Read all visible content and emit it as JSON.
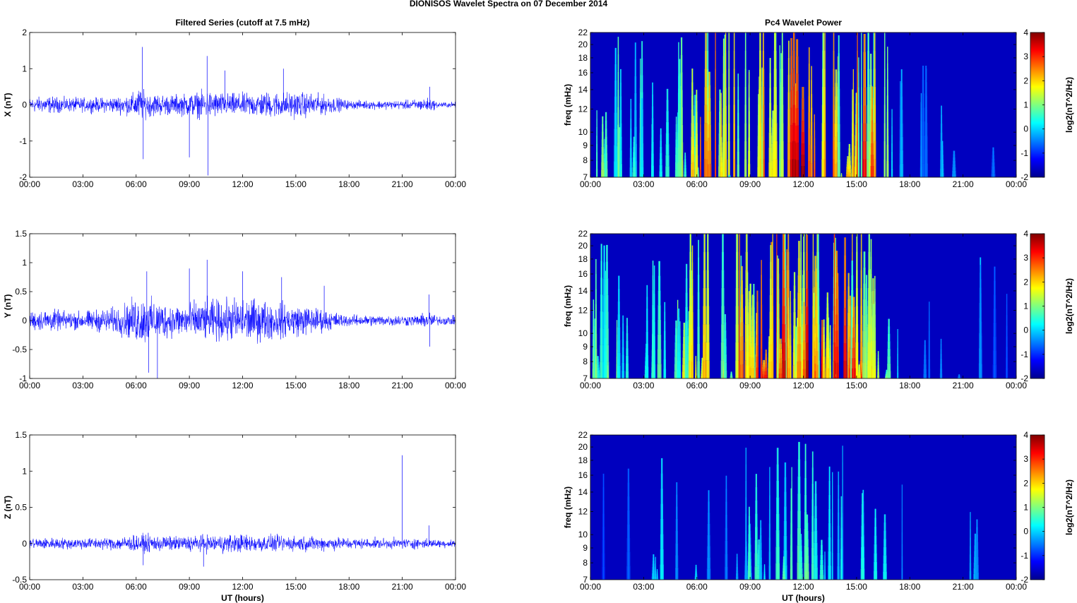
{
  "figure_title": "DIONISOS Wavelet Spectra on 07 December  2014",
  "chart_data": [
    {
      "type": "line",
      "title": "Filtered Series (cutoff at 7.5 mHz)",
      "xlabel": "",
      "ylabel": "X (nT)",
      "x_range_hours": [
        0,
        24
      ],
      "xticks": [
        "00:00",
        "03:00",
        "06:00",
        "09:00",
        "12:00",
        "15:00",
        "18:00",
        "21:00",
        "00:00"
      ],
      "ylim": [
        -2,
        2
      ],
      "yticks": [
        "-2",
        "-1",
        "0",
        "1",
        "2"
      ],
      "series_color": "#0000ff",
      "envelope": {
        "hours": [
          0,
          1,
          2,
          3,
          4,
          5,
          5.8,
          6.2,
          6.5,
          7,
          8,
          9,
          10,
          11,
          12,
          13,
          14,
          15,
          16,
          17,
          18,
          19,
          20,
          21,
          22,
          22.5,
          23,
          24
        ],
        "amplitude_nT": [
          0.25,
          0.3,
          0.25,
          0.25,
          0.25,
          0.3,
          0.4,
          0.6,
          0.45,
          0.4,
          0.35,
          0.4,
          0.5,
          0.4,
          0.4,
          0.45,
          0.45,
          0.45,
          0.4,
          0.3,
          0.15,
          0.15,
          0.15,
          0.15,
          0.2,
          0.25,
          0.1,
          0.1
        ]
      },
      "spikes": [
        {
          "hour": 6.35,
          "value": 1.6
        },
        {
          "hour": 6.4,
          "value": -1.5
        },
        {
          "hour": 9.0,
          "value": -1.45
        },
        {
          "hour": 10.0,
          "value": 1.35
        },
        {
          "hour": 10.05,
          "value": -1.95
        },
        {
          "hour": 11.0,
          "value": 0.95
        },
        {
          "hour": 14.3,
          "value": 1.0
        },
        {
          "hour": 22.55,
          "value": 0.5
        }
      ]
    },
    {
      "type": "line",
      "title": "",
      "xlabel": "",
      "ylabel": "Y (nT)",
      "x_range_hours": [
        0,
        24
      ],
      "xticks": [
        "00:00",
        "03:00",
        "06:00",
        "09:00",
        "12:00",
        "15:00",
        "18:00",
        "21:00",
        "00:00"
      ],
      "ylim": [
        -1,
        1.5
      ],
      "yticks": [
        "-1",
        "-0.5",
        "0",
        "0.5",
        "1",
        "1.5"
      ],
      "series_color": "#0000ff",
      "envelope": {
        "hours": [
          0,
          1,
          2,
          3,
          4,
          5,
          5.8,
          6.2,
          6.5,
          7,
          8,
          9,
          10,
          11,
          12,
          13,
          14,
          15,
          16,
          17,
          18,
          19,
          20,
          21,
          22,
          22.5,
          23,
          24
        ],
        "amplitude_nT": [
          0.2,
          0.25,
          0.2,
          0.2,
          0.25,
          0.3,
          0.45,
          0.55,
          0.5,
          0.45,
          0.35,
          0.4,
          0.45,
          0.45,
          0.5,
          0.45,
          0.4,
          0.35,
          0.3,
          0.2,
          0.12,
          0.12,
          0.12,
          0.12,
          0.12,
          0.2,
          0.1,
          0.1
        ]
      },
      "spikes": [
        {
          "hour": 6.6,
          "value": 0.85
        },
        {
          "hour": 6.7,
          "value": -0.9
        },
        {
          "hour": 7.2,
          "value": -1.0
        },
        {
          "hour": 10.0,
          "value": 1.05
        },
        {
          "hour": 9.0,
          "value": 0.9
        },
        {
          "hour": 12.0,
          "value": 0.85
        },
        {
          "hour": 14.2,
          "value": 0.75
        },
        {
          "hour": 16.6,
          "value": 0.6
        },
        {
          "hour": 22.5,
          "value": 0.45
        },
        {
          "hour": 22.55,
          "value": -0.45
        }
      ]
    },
    {
      "type": "line",
      "title": "",
      "xlabel": "UT (hours)",
      "ylabel": "Z (nT)",
      "x_range_hours": [
        0,
        24
      ],
      "xticks": [
        "00:00",
        "03:00",
        "06:00",
        "09:00",
        "12:00",
        "15:00",
        "18:00",
        "21:00",
        "00:00"
      ],
      "ylim": [
        -0.5,
        1.5
      ],
      "yticks": [
        "-0.5",
        "0",
        "0.5",
        "1",
        "1.5"
      ],
      "series_color": "#0000ff",
      "envelope": {
        "hours": [
          0,
          1,
          2,
          3,
          4,
          5,
          6,
          7,
          8,
          9,
          10,
          11,
          12,
          13,
          14,
          15,
          16,
          17,
          18,
          19,
          20,
          21,
          22,
          23,
          24
        ],
        "amplitude_nT": [
          0.1,
          0.1,
          0.1,
          0.1,
          0.1,
          0.12,
          0.15,
          0.15,
          0.12,
          0.14,
          0.15,
          0.16,
          0.16,
          0.15,
          0.14,
          0.13,
          0.13,
          0.12,
          0.1,
          0.09,
          0.09,
          0.09,
          0.09,
          0.07,
          0.07
        ]
      },
      "spikes": [
        {
          "hour": 21.0,
          "value": 1.22
        },
        {
          "hour": 6.4,
          "value": -0.3
        },
        {
          "hour": 9.8,
          "value": -0.32
        },
        {
          "hour": 22.5,
          "value": 0.25
        }
      ]
    },
    {
      "type": "heatmap",
      "title": "Pc4 Wavelet Power",
      "xlabel": "",
      "ylabel": "freq (mHz)",
      "x_range_hours": [
        0,
        24
      ],
      "xticks": [
        "00:00",
        "03:00",
        "06:00",
        "09:00",
        "12:00",
        "15:00",
        "18:00",
        "21:00",
        "00:00"
      ],
      "ylim_mHz": [
        7,
        22
      ],
      "y_scale": "log",
      "yticks": [
        "7",
        "8",
        "9",
        "10",
        "12",
        "14",
        "16",
        "18",
        "20",
        "22"
      ],
      "colorbar": {
        "label": "log2(nT^2/Hz)",
        "range": [
          -2,
          4
        ],
        "ticks": [
          "-2",
          "-1",
          "0",
          "1",
          "2",
          "3",
          "4"
        ],
        "colormap": "jet"
      },
      "background_value": -2,
      "activity": {
        "hours": [
          0,
          1,
          2,
          3,
          4,
          5,
          6,
          7,
          8,
          9,
          10,
          11,
          12,
          13,
          14,
          15,
          16,
          17,
          18,
          19,
          20,
          21,
          22,
          23,
          24
        ],
        "level": [
          0.35,
          0.45,
          0.4,
          0.35,
          0.35,
          0.4,
          0.7,
          0.75,
          0.6,
          0.75,
          0.8,
          0.8,
          0.85,
          0.8,
          0.8,
          0.75,
          0.75,
          0.3,
          0.05,
          0.15,
          0.2,
          0.15,
          0.2,
          0.05,
          0.05
        ]
      }
    },
    {
      "type": "heatmap",
      "title": "",
      "xlabel": "",
      "ylabel": "freq (mHz)",
      "x_range_hours": [
        0,
        24
      ],
      "xticks": [
        "00:00",
        "03:00",
        "06:00",
        "09:00",
        "12:00",
        "15:00",
        "18:00",
        "21:00",
        "00:00"
      ],
      "ylim_mHz": [
        7,
        22
      ],
      "y_scale": "log",
      "yticks": [
        "7",
        "8",
        "9",
        "10",
        "12",
        "14",
        "16",
        "18",
        "20",
        "22"
      ],
      "colorbar": {
        "label": "log2(nT^2/Hz)",
        "range": [
          -2,
          4
        ],
        "ticks": [
          "-2",
          "-1",
          "0",
          "1",
          "2",
          "3",
          "4"
        ],
        "colormap": "jet"
      },
      "background_value": -2,
      "activity": {
        "hours": [
          0,
          1,
          2,
          3,
          4,
          5,
          6,
          7,
          8,
          9,
          10,
          11,
          12,
          13,
          14,
          15,
          16,
          17,
          18,
          19,
          20,
          21,
          22,
          23,
          24
        ],
        "level": [
          0.35,
          0.4,
          0.4,
          0.35,
          0.4,
          0.45,
          0.75,
          0.75,
          0.65,
          0.75,
          0.8,
          0.8,
          0.85,
          0.8,
          0.8,
          0.75,
          0.7,
          0.3,
          0.05,
          0.1,
          0.15,
          0.1,
          0.2,
          0.05,
          0.05
        ]
      }
    },
    {
      "type": "heatmap",
      "title": "",
      "xlabel": "UT (hours)",
      "ylabel": "freq (mHz)",
      "x_range_hours": [
        0,
        24
      ],
      "xticks": [
        "00:00",
        "03:00",
        "06:00",
        "09:00",
        "12:00",
        "15:00",
        "18:00",
        "21:00",
        "00:00"
      ],
      "ylim_mHz": [
        7,
        22
      ],
      "y_scale": "log",
      "yticks": [
        "7",
        "8",
        "9",
        "10",
        "12",
        "14",
        "16",
        "18",
        "20",
        "22"
      ],
      "colorbar": {
        "label": "log2(nT^2/Hz)",
        "range": [
          -2,
          4
        ],
        "ticks": [
          "-2",
          "-1",
          "0",
          "1",
          "2",
          "3",
          "4"
        ],
        "colormap": "jet"
      },
      "background_value": -2,
      "activity": {
        "hours": [
          0,
          1,
          2,
          3,
          4,
          5,
          6,
          7,
          8,
          9,
          10,
          11,
          12,
          13,
          14,
          15,
          16,
          17,
          18,
          19,
          20,
          21,
          22,
          23,
          24
        ],
        "level": [
          0.02,
          0.02,
          0.05,
          0.1,
          0.25,
          0.1,
          0.3,
          0.15,
          0.2,
          0.3,
          0.3,
          0.35,
          0.35,
          0.35,
          0.35,
          0.3,
          0.3,
          0.2,
          0.05,
          0.05,
          0.1,
          0.2,
          0.15,
          0.02,
          0.02
        ]
      }
    }
  ]
}
